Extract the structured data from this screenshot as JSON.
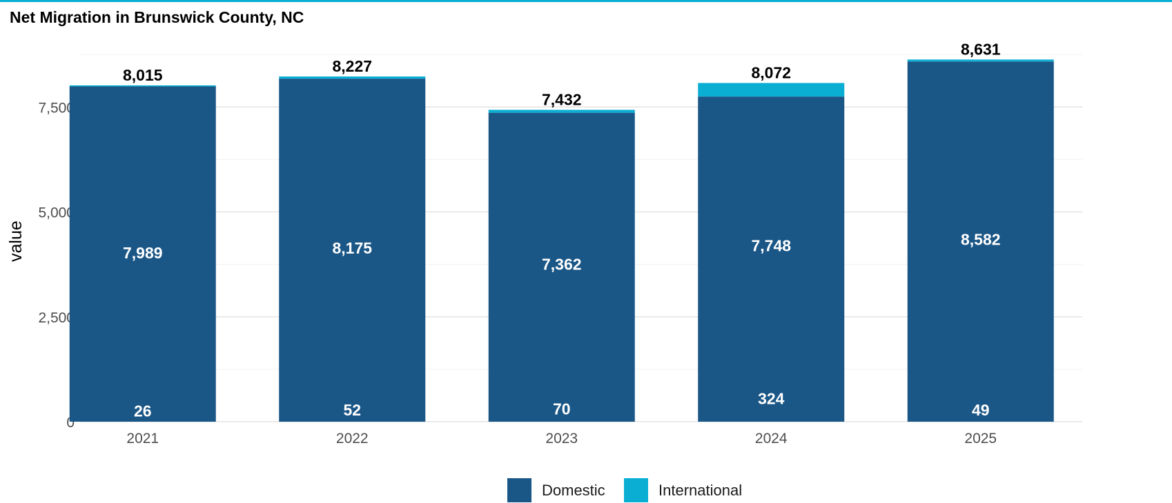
{
  "chart_data": {
    "type": "bar",
    "stacked": true,
    "title": "Net Migration in Brunswick County, NC",
    "xlabel": "",
    "ylabel": "value",
    "categories": [
      "2021",
      "2022",
      "2023",
      "2024",
      "2025"
    ],
    "series": [
      {
        "name": "Domestic",
        "color": "#1a5686",
        "values": [
          7989,
          8175,
          7362,
          7748,
          8582
        ]
      },
      {
        "name": "International",
        "color": "#0aaed3",
        "values": [
          26,
          52,
          70,
          324,
          49
        ]
      }
    ],
    "totals": [
      8015,
      8227,
      7432,
      8072,
      8631
    ],
    "ylim": [
      0,
      8800
    ],
    "yticks": [
      0,
      2500,
      5000,
      7500
    ],
    "ytick_labels": [
      "0",
      "2,500",
      "5,000",
      "7,500"
    ],
    "grid": true,
    "legend": "bottom"
  }
}
